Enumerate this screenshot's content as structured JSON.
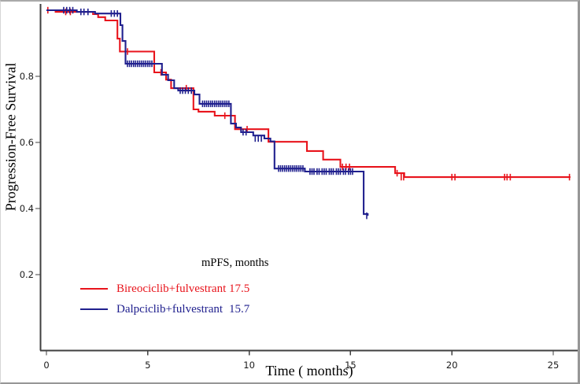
{
  "figure": {
    "background": "#ffffff",
    "border_color": "#999999"
  },
  "chart_data": {
    "type": "line",
    "subtype": "kaplan-meier-step",
    "title": "",
    "xlabel": "Time ( months)",
    "ylabel": "Progression-Free Survival",
    "xlim": [
      0,
      26
    ],
    "ylim": [
      0.15,
      1.0
    ],
    "xticks": [
      0,
      5,
      10,
      15,
      20,
      25
    ],
    "yticks": [
      0.2,
      0.4,
      0.6,
      0.8
    ],
    "grid": false,
    "axis_color": "#3f3f3f",
    "tick_label_color": "#1a1a1a",
    "legend": {
      "position": "lower-left-inside",
      "header": "mPFS, months",
      "entries": [
        {
          "label": "Bireociclib+fulvestrant",
          "value": "17.5",
          "color": "#e8141c"
        },
        {
          "label": "Dalpciclib+fulvestrant",
          "value": "15.7",
          "color": "#20208e"
        }
      ]
    },
    "series": [
      {
        "name": "Bireociclib+fulvestrant",
        "color": "#e8141c",
        "median_pfs_months": 17.5,
        "points": [
          [
            0,
            1.0
          ],
          [
            0.45,
            0.995
          ],
          [
            2.3,
            0.988
          ],
          [
            2.55,
            0.979
          ],
          [
            2.9,
            0.969
          ],
          [
            3.5,
            0.914
          ],
          [
            3.62,
            0.875
          ],
          [
            5.32,
            0.812
          ],
          [
            5.9,
            0.79
          ],
          [
            6.15,
            0.764
          ],
          [
            7.25,
            0.7
          ],
          [
            7.5,
            0.693
          ],
          [
            8.3,
            0.681
          ],
          [
            9.3,
            0.64
          ],
          [
            10.95,
            0.602
          ],
          [
            12.85,
            0.574
          ],
          [
            13.65,
            0.548
          ],
          [
            14.5,
            0.526
          ],
          [
            17.2,
            0.507
          ],
          [
            17.65,
            0.495
          ],
          [
            25.85,
            0.495
          ]
        ],
        "censors": [
          [
            0.07,
            1.0
          ],
          [
            0.95,
            0.995
          ],
          [
            1.18,
            0.995
          ],
          [
            4.0,
            0.875
          ],
          [
            5.65,
            0.812
          ],
          [
            6.9,
            0.764
          ],
          [
            8.8,
            0.681
          ],
          [
            9.9,
            0.64
          ],
          [
            14.6,
            0.526
          ],
          [
            14.78,
            0.526
          ],
          [
            14.95,
            0.526
          ],
          [
            17.3,
            0.507
          ],
          [
            17.5,
            0.495
          ],
          [
            17.62,
            0.495
          ],
          [
            20.0,
            0.495
          ],
          [
            20.15,
            0.495
          ],
          [
            22.6,
            0.495
          ],
          [
            22.72,
            0.495
          ],
          [
            22.88,
            0.495
          ],
          [
            25.8,
            0.495
          ]
        ]
      },
      {
        "name": "Dalpciclib+fulvestrant",
        "color": "#20208e",
        "median_pfs_months": 15.7,
        "points": [
          [
            0,
            1.0
          ],
          [
            1.5,
            0.995
          ],
          [
            2.4,
            0.99
          ],
          [
            3.65,
            0.955
          ],
          [
            3.75,
            0.907
          ],
          [
            3.9,
            0.838
          ],
          [
            5.7,
            0.805
          ],
          [
            6.0,
            0.788
          ],
          [
            6.3,
            0.764
          ],
          [
            6.5,
            0.757
          ],
          [
            7.3,
            0.745
          ],
          [
            7.55,
            0.717
          ],
          [
            9.1,
            0.657
          ],
          [
            9.35,
            0.645
          ],
          [
            9.6,
            0.631
          ],
          [
            10.2,
            0.621
          ],
          [
            10.75,
            0.612
          ],
          [
            11.05,
            0.603
          ],
          [
            11.25,
            0.521
          ],
          [
            12.75,
            0.512
          ],
          [
            15.65,
            0.383
          ],
          [
            15.85,
            0.378
          ]
        ],
        "censors": [
          [
            0.85,
            1.0
          ],
          [
            1.0,
            1.0
          ],
          [
            1.15,
            1.0
          ],
          [
            1.3,
            1.0
          ],
          [
            1.7,
            0.995
          ],
          [
            1.85,
            0.995
          ],
          [
            2.05,
            0.995
          ],
          [
            3.2,
            0.99
          ],
          [
            3.35,
            0.99
          ],
          [
            3.5,
            0.99
          ],
          [
            4.0,
            0.838
          ],
          [
            4.1,
            0.838
          ],
          [
            4.2,
            0.838
          ],
          [
            4.3,
            0.838
          ],
          [
            4.4,
            0.838
          ],
          [
            4.5,
            0.838
          ],
          [
            4.6,
            0.838
          ],
          [
            4.7,
            0.838
          ],
          [
            4.8,
            0.838
          ],
          [
            4.9,
            0.838
          ],
          [
            5.0,
            0.838
          ],
          [
            5.1,
            0.838
          ],
          [
            5.2,
            0.838
          ],
          [
            6.6,
            0.757
          ],
          [
            6.72,
            0.757
          ],
          [
            6.85,
            0.757
          ],
          [
            7.0,
            0.757
          ],
          [
            7.15,
            0.757
          ],
          [
            7.7,
            0.717
          ],
          [
            7.8,
            0.717
          ],
          [
            7.9,
            0.717
          ],
          [
            8.0,
            0.717
          ],
          [
            8.1,
            0.717
          ],
          [
            8.2,
            0.717
          ],
          [
            8.3,
            0.717
          ],
          [
            8.4,
            0.717
          ],
          [
            8.5,
            0.717
          ],
          [
            8.6,
            0.717
          ],
          [
            8.7,
            0.717
          ],
          [
            8.8,
            0.717
          ],
          [
            8.9,
            0.717
          ],
          [
            9.0,
            0.717
          ],
          [
            9.7,
            0.631
          ],
          [
            9.85,
            0.631
          ],
          [
            10.3,
            0.612
          ],
          [
            10.45,
            0.612
          ],
          [
            10.6,
            0.612
          ],
          [
            11.45,
            0.521
          ],
          [
            11.55,
            0.521
          ],
          [
            11.65,
            0.521
          ],
          [
            11.75,
            0.521
          ],
          [
            11.85,
            0.521
          ],
          [
            11.95,
            0.521
          ],
          [
            12.05,
            0.521
          ],
          [
            12.15,
            0.521
          ],
          [
            12.25,
            0.521
          ],
          [
            12.35,
            0.521
          ],
          [
            12.45,
            0.521
          ],
          [
            12.55,
            0.521
          ],
          [
            12.65,
            0.521
          ],
          [
            13.0,
            0.512
          ],
          [
            13.1,
            0.512
          ],
          [
            13.2,
            0.512
          ],
          [
            13.35,
            0.512
          ],
          [
            13.45,
            0.512
          ],
          [
            13.6,
            0.512
          ],
          [
            13.7,
            0.512
          ],
          [
            13.8,
            0.512
          ],
          [
            13.95,
            0.512
          ],
          [
            14.05,
            0.512
          ],
          [
            14.15,
            0.512
          ],
          [
            14.3,
            0.512
          ],
          [
            14.4,
            0.512
          ],
          [
            14.5,
            0.512
          ],
          [
            14.65,
            0.512
          ],
          [
            14.75,
            0.512
          ],
          [
            14.9,
            0.512
          ],
          [
            15.0,
            0.512
          ],
          [
            15.1,
            0.512
          ],
          [
            15.8,
            0.378
          ]
        ]
      }
    ]
  }
}
